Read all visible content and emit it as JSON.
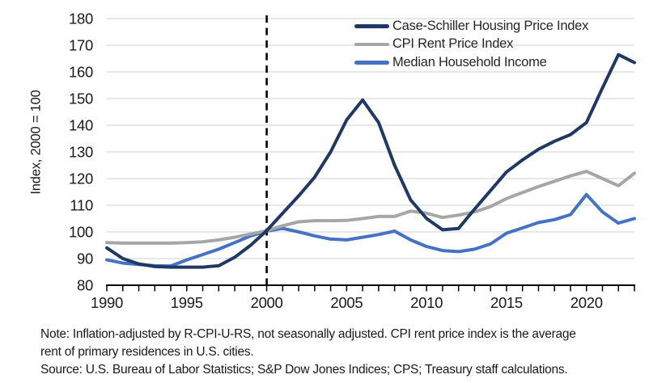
{
  "chart_data": {
    "type": "line",
    "title": "",
    "ylabel": "Index, 2000 = 100",
    "xlabel": "",
    "ylim": [
      80,
      180
    ],
    "x_range": [
      1990,
      2023
    ],
    "y_ticks": [
      80,
      90,
      100,
      110,
      120,
      130,
      140,
      150,
      160,
      170,
      180
    ],
    "x_ticks_labeled": [
      1990,
      1995,
      2000,
      2005,
      2010,
      2015,
      2020
    ],
    "minor_x_ticks_every": 1,
    "reference_line_x": 2000,
    "grid": "horizontal",
    "legend_position": "top-right",
    "colors": {
      "gridline": "#d9d9d9",
      "axis": "#000000",
      "reference_line": "#000000",
      "tick_label": "#1a1a1a"
    },
    "x": [
      1990,
      1991,
      1992,
      1993,
      1994,
      1995,
      1996,
      1997,
      1998,
      1999,
      2000,
      2001,
      2002,
      2003,
      2004,
      2005,
      2006,
      2007,
      2008,
      2009,
      2010,
      2011,
      2012,
      2013,
      2014,
      2015,
      2016,
      2017,
      2018,
      2019,
      2020,
      2021,
      2022,
      2023
    ],
    "series": [
      {
        "name": "Case-Schiller Housing Price Index",
        "color": "#1F3864",
        "values": [
          94,
          90,
          88,
          87,
          86.8,
          86.8,
          86.8,
          87.3,
          90.5,
          95,
          100.5,
          107,
          113.5,
          120.5,
          130,
          142,
          149.5,
          141,
          125,
          112,
          105,
          100.8,
          101.3,
          108.5,
          115.5,
          122.5,
          127,
          131,
          134,
          136.5,
          141,
          154,
          166.5,
          163.5
        ]
      },
      {
        "name": "CPI Rent Price Index",
        "color": "#A6A6A6",
        "values": [
          96,
          95.8,
          95.8,
          95.8,
          95.8,
          96,
          96.3,
          97,
          98,
          99.2,
          100.5,
          102.3,
          103.8,
          104.2,
          104.2,
          104.3,
          105,
          105.8,
          105.8,
          107.8,
          107,
          105.4,
          106.3,
          107.5,
          109.5,
          112.5,
          114.8,
          117,
          119,
          121,
          122.7,
          120,
          117.3,
          122
        ]
      },
      {
        "name": "Median Household Income",
        "color": "#4472C4",
        "values": [
          89.5,
          88.3,
          87.8,
          87.3,
          87.2,
          89.5,
          91.5,
          93.5,
          96,
          98.5,
          100.3,
          101.3,
          100,
          98.5,
          97.3,
          97,
          98,
          99,
          100.3,
          97,
          94.5,
          93,
          92.6,
          93.5,
          95.5,
          99.5,
          101.5,
          103.5,
          104.6,
          106.5,
          114,
          107.5,
          103.3,
          105
        ]
      }
    ]
  },
  "notes": {
    "line1": "Note: Inflation-adjusted by R-CPI-U-RS, not seasonally adjusted. CPI rent price index is the average",
    "line2": "rent of primary residences in U.S. cities.",
    "source": "Source: U.S. Bureau of Labor Statistics; S&P Dow Jones Indices; CPS; Treasury staff calculations."
  }
}
